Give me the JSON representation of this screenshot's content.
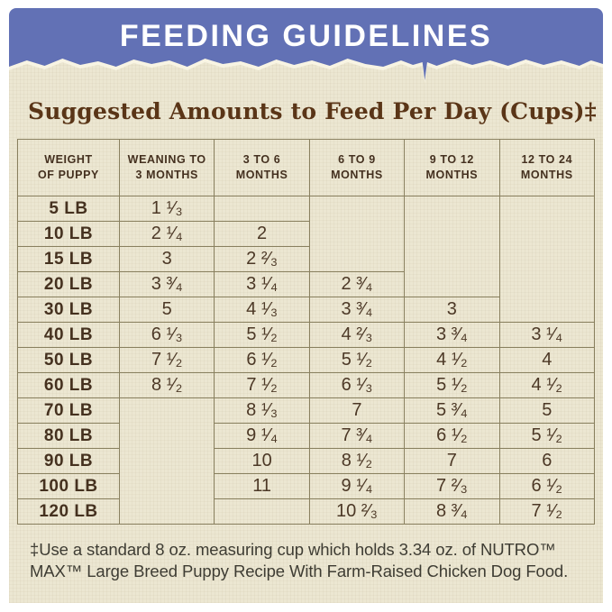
{
  "banner": {
    "title": "FEEDING GUIDELINES"
  },
  "main": {
    "title": "Suggested Amounts to Feed Per Day (Cups)‡"
  },
  "colors": {
    "banner_bg": "#6271b5",
    "paper_bg": "#ece7d2",
    "table_border": "#89805f",
    "title_text": "#5a3517",
    "cell_text": "#4c3826"
  },
  "table": {
    "headers": [
      {
        "l1": "WEIGHT",
        "l2": "OF PUPPY"
      },
      {
        "l1": "WEANING TO",
        "l2": "3 MONTHS"
      },
      {
        "l1": "3 TO 6",
        "l2": "MONTHS"
      },
      {
        "l1": "6 TO 9",
        "l2": "MONTHS"
      },
      {
        "l1": "9 TO 12",
        "l2": "MONTHS"
      },
      {
        "l1": "12 TO 24",
        "l2": "MONTHS"
      }
    ],
    "rows": [
      {
        "weight": "5 LB",
        "weaning3mo": "1 ¹⁄₃",
        "mo3to6": "",
        "mo6to9": "",
        "mo9to12": "",
        "mo12to24": ""
      },
      {
        "weight": "10 LB",
        "weaning3mo": "2 ¹⁄₄",
        "mo3to6": "2",
        "mo6to9": "",
        "mo9to12": "",
        "mo12to24": ""
      },
      {
        "weight": "15 LB",
        "weaning3mo": "3",
        "mo3to6": "2 ²⁄₃",
        "mo6to9": "",
        "mo9to12": "",
        "mo12to24": ""
      },
      {
        "weight": "20 LB",
        "weaning3mo": "3 ³⁄₄",
        "mo3to6": "3 ¹⁄₄",
        "mo6to9": "2 ³⁄₄",
        "mo9to12": "",
        "mo12to24": ""
      },
      {
        "weight": "30 LB",
        "weaning3mo": "5",
        "mo3to6": "4 ¹⁄₃",
        "mo6to9": "3 ³⁄₄",
        "mo9to12": "3",
        "mo12to24": ""
      },
      {
        "weight": "40 LB",
        "weaning3mo": "6 ¹⁄₃",
        "mo3to6": "5 ¹⁄₂",
        "mo6to9": "4 ²⁄₃",
        "mo9to12": "3 ³⁄₄",
        "mo12to24": "3 ¹⁄₄"
      },
      {
        "weight": "50 LB",
        "weaning3mo": "7 ¹⁄₂",
        "mo3to6": "6 ¹⁄₂",
        "mo6to9": "5 ¹⁄₂",
        "mo9to12": "4 ¹⁄₂",
        "mo12to24": "4"
      },
      {
        "weight": "60 LB",
        "weaning3mo": "8 ¹⁄₂",
        "mo3to6": "7 ¹⁄₂",
        "mo6to9": "6 ¹⁄₃",
        "mo9to12": "5 ¹⁄₂",
        "mo12to24": "4 ¹⁄₂"
      },
      {
        "weight": "70 LB",
        "weaning3mo": "",
        "mo3to6": "8 ¹⁄₃",
        "mo6to9": "7",
        "mo9to12": "5 ³⁄₄",
        "mo12to24": "5"
      },
      {
        "weight": "80 LB",
        "weaning3mo": "",
        "mo3to6": "9 ¹⁄₄",
        "mo6to9": "7 ³⁄₄",
        "mo9to12": "6 ¹⁄₂",
        "mo12to24": "5 ¹⁄₂"
      },
      {
        "weight": "90 LB",
        "weaning3mo": "",
        "mo3to6": "10",
        "mo6to9": "8 ¹⁄₂",
        "mo9to12": "7",
        "mo12to24": "6"
      },
      {
        "weight": "100 LB",
        "weaning3mo": "",
        "mo3to6": "11",
        "mo6to9": "9 ¹⁄₄",
        "mo9to12": "7 ²⁄₃",
        "mo12to24": "6 ¹⁄₂"
      },
      {
        "weight": "120 LB",
        "weaning3mo": "",
        "mo3to6": "",
        "mo6to9": "10 ²⁄₃",
        "mo9to12": "8 ³⁄₄",
        "mo12to24": "7 ¹⁄₂"
      }
    ]
  },
  "chart_data": {
    "type": "table",
    "title": "Suggested Amounts to Feed Per Day (Cups)",
    "columns": [
      "WEIGHT OF PUPPY",
      "WEANING TO 3 MONTHS",
      "3 TO 6 MONTHS",
      "6 TO 9 MONTHS",
      "9 TO 12 MONTHS",
      "12 TO 24 MONTHS"
    ],
    "rows": [
      [
        "5 LB",
        "1 1/3",
        "",
        "",
        "",
        ""
      ],
      [
        "10 LB",
        "2 1/4",
        "2",
        "",
        "",
        ""
      ],
      [
        "15 LB",
        "3",
        "2 2/3",
        "",
        "",
        ""
      ],
      [
        "20 LB",
        "3 3/4",
        "3 1/4",
        "2 3/4",
        "",
        ""
      ],
      [
        "30 LB",
        "5",
        "4 1/3",
        "3 3/4",
        "3",
        ""
      ],
      [
        "40 LB",
        "6 1/3",
        "5 1/2",
        "4 2/3",
        "3 3/4",
        "3 1/4"
      ],
      [
        "50 LB",
        "7 1/2",
        "6 1/2",
        "5 1/2",
        "4 1/2",
        "4"
      ],
      [
        "60 LB",
        "8 1/2",
        "7 1/2",
        "6 1/3",
        "5 1/2",
        "4 1/2"
      ],
      [
        "70 LB",
        "",
        "8 1/3",
        "7",
        "5 3/4",
        "5"
      ],
      [
        "80 LB",
        "",
        "9 1/4",
        "7 3/4",
        "6 1/2",
        "5 1/2"
      ],
      [
        "90 LB",
        "",
        "10",
        "8 1/2",
        "7",
        "6"
      ],
      [
        "100 LB",
        "",
        "11",
        "9 1/4",
        "7 2/3",
        "6 1/2"
      ],
      [
        "120 LB",
        "",
        "",
        "10 2/3",
        "8 3/4",
        "7 1/2"
      ]
    ]
  },
  "footnote": {
    "line1": "‡Use a standard 8 oz. measuring cup which holds 3.34 oz. of NUTRO™",
    "line2": "MAX™ Large Breed Puppy Recipe With Farm-Raised Chicken Dog Food."
  }
}
